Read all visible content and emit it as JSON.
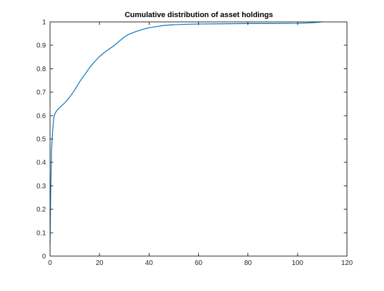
{
  "chart_data": {
    "type": "line",
    "title": "Cumulative distribution of asset holdings",
    "xlabel": "",
    "ylabel": "",
    "xlim": [
      0,
      120
    ],
    "ylim": [
      0,
      1
    ],
    "xticks": [
      0,
      20,
      40,
      60,
      80,
      100,
      120
    ],
    "yticks": [
      0,
      0.1,
      0.2,
      0.3,
      0.4,
      0.5,
      0.6,
      0.7,
      0.8,
      0.9,
      1
    ],
    "xtick_labels": [
      "0",
      "20",
      "40",
      "60",
      "80",
      "100",
      "120"
    ],
    "ytick_labels": [
      "0",
      "0.1",
      "0.2",
      "0.3",
      "0.4",
      "0.5",
      "0.6",
      "0.7",
      "0.8",
      "0.9",
      "1"
    ],
    "grid": false,
    "box": true,
    "series": [
      {
        "color": "#0072bd",
        "x": [
          0,
          0.3,
          0.6,
          1,
          1.5,
          2,
          3,
          4,
          5,
          6,
          8,
          10,
          12,
          14,
          16,
          18,
          20,
          22,
          24,
          26,
          28,
          30,
          32,
          35,
          38,
          40,
          43,
          46,
          50,
          55,
          60,
          70,
          80,
          90,
          100,
          105,
          108,
          110
        ],
        "y": [
          0.05,
          0.3,
          0.45,
          0.53,
          0.59,
          0.61,
          0.625,
          0.635,
          0.645,
          0.655,
          0.68,
          0.71,
          0.745,
          0.775,
          0.805,
          0.83,
          0.852,
          0.87,
          0.885,
          0.9,
          0.918,
          0.935,
          0.948,
          0.96,
          0.97,
          0.975,
          0.98,
          0.985,
          0.988,
          0.99,
          0.991,
          0.992,
          0.993,
          0.993,
          0.994,
          0.996,
          0.998,
          1
        ]
      }
    ]
  }
}
